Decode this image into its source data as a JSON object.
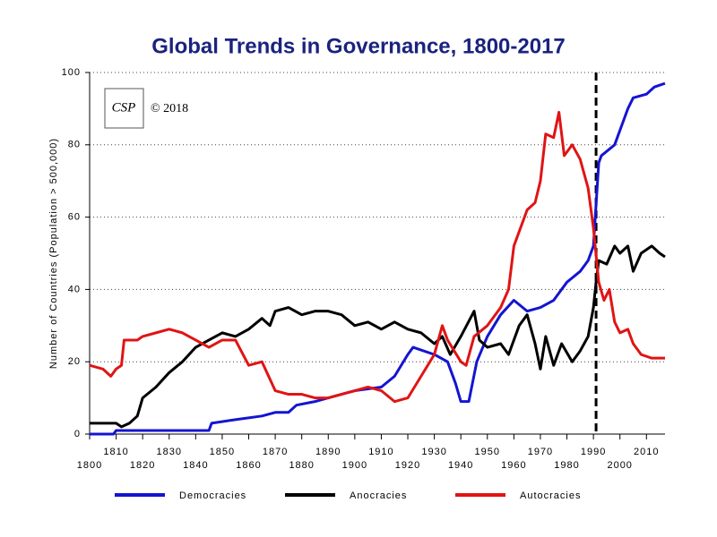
{
  "chart_data": {
    "type": "line",
    "title": "Global Trends in Governance, 1800-2017",
    "y_label": "Number of Countries (Population > 500,000)",
    "copyright": "© 2018",
    "logo_text": "CSP",
    "xlim": [
      1800,
      2017
    ],
    "xticks": [
      1800,
      1810,
      1820,
      1830,
      1840,
      1850,
      1860,
      1870,
      1880,
      1890,
      1900,
      1910,
      1920,
      1930,
      1940,
      1950,
      1960,
      1970,
      1980,
      1990,
      2000,
      2010
    ],
    "ylim": [
      0,
      100
    ],
    "yticks": [
      0,
      20,
      40,
      60,
      80,
      100
    ],
    "grid": true,
    "vline": 1991,
    "series": [
      {
        "name": "Democracies",
        "color": "#1414d2",
        "x": [
          1800,
          1809,
          1810,
          1845,
          1846,
          1855,
          1865,
          1870,
          1875,
          1878,
          1885,
          1890,
          1900,
          1910,
          1915,
          1920,
          1922,
          1930,
          1935,
          1938,
          1940,
          1943,
          1946,
          1950,
          1955,
          1960,
          1965,
          1970,
          1975,
          1980,
          1985,
          1988,
          1990,
          1992,
          1993,
          1998,
          2000,
          2003,
          2005,
          2010,
          2013,
          2017
        ],
        "values": [
          0,
          0,
          1,
          1,
          3,
          4,
          5,
          6,
          6,
          8,
          9,
          10,
          12,
          13,
          16,
          22,
          24,
          22,
          20,
          14,
          9,
          9,
          20,
          27,
          33,
          37,
          34,
          35,
          37,
          42,
          45,
          48,
          52,
          75,
          77,
          80,
          84,
          90,
          93,
          94,
          96,
          97
        ]
      },
      {
        "name": "Anocracies",
        "color": "#000000",
        "x": [
          1800,
          1810,
          1812,
          1815,
          1818,
          1820,
          1825,
          1830,
          1835,
          1840,
          1845,
          1850,
          1855,
          1860,
          1865,
          1868,
          1870,
          1875,
          1880,
          1885,
          1890,
          1895,
          1900,
          1905,
          1910,
          1915,
          1920,
          1925,
          1930,
          1933,
          1936,
          1940,
          1945,
          1947,
          1950,
          1955,
          1958,
          1962,
          1965,
          1968,
          1970,
          1972,
          1975,
          1978,
          1982,
          1985,
          1988,
          1990,
          1991,
          1992,
          1995,
          1998,
          2000,
          2003,
          2005,
          2008,
          2012,
          2015,
          2017
        ],
        "values": [
          3,
          3,
          2,
          3,
          5,
          10,
          13,
          17,
          20,
          24,
          26,
          28,
          27,
          29,
          32,
          30,
          34,
          35,
          33,
          34,
          34,
          33,
          30,
          31,
          29,
          31,
          29,
          28,
          25,
          27,
          22,
          27,
          34,
          26,
          24,
          25,
          22,
          30,
          33,
          25,
          18,
          27,
          19,
          25,
          20,
          23,
          27,
          35,
          42,
          48,
          47,
          52,
          50,
          52,
          45,
          50,
          52,
          50,
          49
        ]
      },
      {
        "name": "Autocracies",
        "color": "#e01414",
        "x": [
          1800,
          1805,
          1808,
          1810,
          1812,
          1813,
          1818,
          1820,
          1825,
          1830,
          1835,
          1840,
          1845,
          1850,
          1855,
          1860,
          1865,
          1870,
          1875,
          1880,
          1885,
          1890,
          1895,
          1900,
          1905,
          1910,
          1915,
          1920,
          1925,
          1930,
          1933,
          1935,
          1940,
          1942,
          1945,
          1950,
          1955,
          1958,
          1960,
          1965,
          1968,
          1970,
          1972,
          1975,
          1977,
          1979,
          1982,
          1985,
          1988,
          1990,
          1992,
          1994,
          1996,
          1998,
          2000,
          2003,
          2005,
          2008,
          2012,
          2017
        ],
        "values": [
          19,
          18,
          16,
          18,
          19,
          26,
          26,
          27,
          28,
          29,
          28,
          26,
          24,
          26,
          26,
          19,
          20,
          12,
          11,
          11,
          10,
          10,
          11,
          12,
          13,
          12,
          9,
          10,
          16,
          22,
          30,
          26,
          20,
          19,
          27,
          30,
          35,
          40,
          52,
          62,
          64,
          70,
          83,
          82,
          89,
          77,
          80,
          76,
          68,
          57,
          42,
          37,
          40,
          31,
          28,
          29,
          25,
          22,
          21,
          21
        ]
      }
    ]
  }
}
